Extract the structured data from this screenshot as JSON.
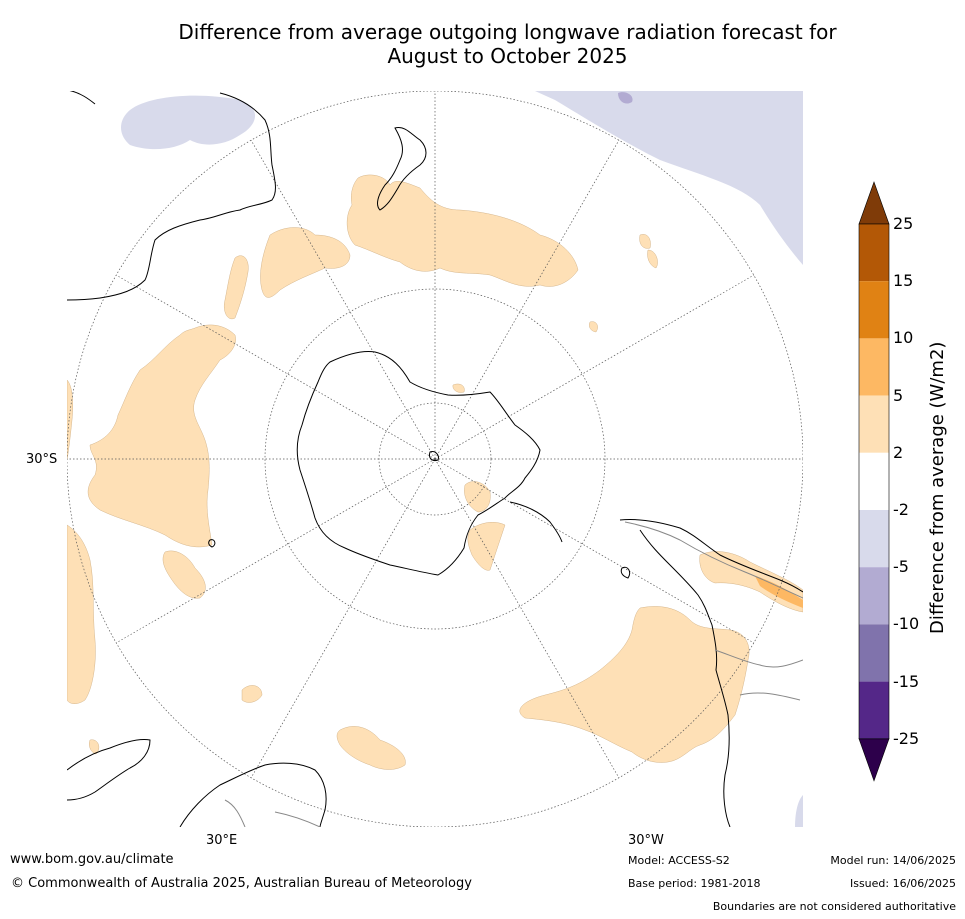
{
  "title_line1": "Difference from average outgoing longwave radiation forecast for",
  "title_line2": "August to October 2025",
  "grid_labels": {
    "lat_30s": "30°S",
    "lon_30e": "30°E",
    "lon_30w": "30°W"
  },
  "colorbar": {
    "label": "Difference from average (W/m2)",
    "ticks": [
      "25",
      "15",
      "10",
      "5",
      "2",
      "-2",
      "-5",
      "-10",
      "-15",
      "-25"
    ],
    "bins": [
      {
        "range": "> 25",
        "color": "#7f3b08"
      },
      {
        "range": "15 to 25",
        "color": "#b35806"
      },
      {
        "range": "10 to 15",
        "color": "#e08214"
      },
      {
        "range": "5 to 10",
        "color": "#fdb863"
      },
      {
        "range": "2 to 5",
        "color": "#fee0b6"
      },
      {
        "range": "-2 to 2",
        "color": "#ffffff"
      },
      {
        "range": "-5 to -2",
        "color": "#d8daeb"
      },
      {
        "range": "-10 to -5",
        "color": "#b2abd2"
      },
      {
        "range": "-15 to -10",
        "color": "#8073ac"
      },
      {
        "range": "-25 to -15",
        "color": "#542788"
      },
      {
        "range": "< -25",
        "color": "#2d004b"
      }
    ]
  },
  "footer": {
    "website": "www.bom.gov.au/climate",
    "copyright": "© Commonwealth of Australia 2025, Australian Bureau of Meteorology",
    "model": "Model: ACCESS-S2",
    "base_period": "Base period: 1981-2018",
    "model_run": "Model run: 14/06/2025",
    "issued": "Issued: 16/06/2025",
    "disclaimer": "Boundaries are not considered authoritative"
  }
}
